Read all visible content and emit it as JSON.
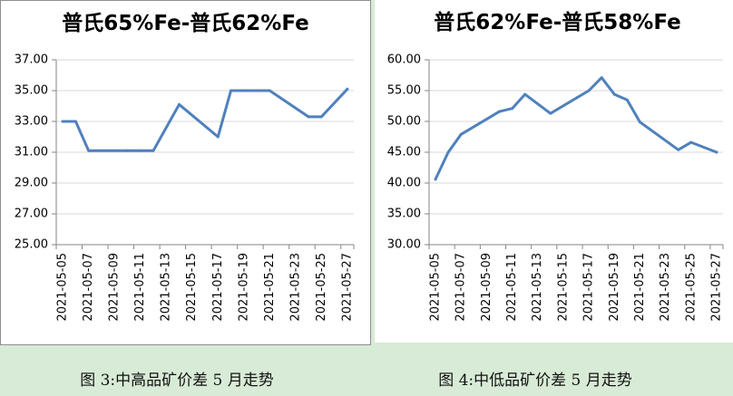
{
  "colors": {
    "background": "#d8ebd6",
    "panel": "#ffffff",
    "line": "#4f81bd"
  },
  "figures": [
    {
      "caption": "图 3:中高品矿价差 5 月走势"
    },
    {
      "caption": "图 4:中低品矿价差 5 月走势"
    }
  ],
  "chart_data": [
    {
      "type": "line",
      "title": "普氏65%Fe-普氏62%Fe",
      "xlabel": "",
      "ylabel": "",
      "xlim": [
        "2021-05-05",
        "2021-05-27"
      ],
      "x_tick_labels": [
        "2021-05-05",
        "2021-05-07",
        "2021-05-09",
        "2021-05-11",
        "2021-05-13",
        "2021-05-15",
        "2021-05-17",
        "2021-05-19",
        "2021-05-21",
        "2021-05-23",
        "2021-05-25",
        "2021-05-27"
      ],
      "ylim": [
        25,
        37
      ],
      "y_tick_labels": [
        "25.00",
        "27.00",
        "29.00",
        "31.00",
        "33.00",
        "35.00",
        "37.00"
      ],
      "grid": true,
      "line_color": "#4f81bd",
      "series": [
        {
          "x": [
            "2021-05-05",
            "2021-05-06",
            "2021-05-07",
            "2021-05-10",
            "2021-05-11",
            "2021-05-12",
            "2021-05-14",
            "2021-05-17",
            "2021-05-18",
            "2021-05-19",
            "2021-05-20",
            "2021-05-21",
            "2021-05-24",
            "2021-05-25",
            "2021-05-27"
          ],
          "y": [
            33.0,
            33.0,
            31.1,
            31.1,
            31.1,
            31.1,
            34.1,
            32.0,
            35.0,
            35.0,
            35.0,
            35.0,
            33.3,
            33.3,
            35.1
          ]
        }
      ]
    },
    {
      "type": "line",
      "title": "普氏62%Fe-普氏58%Fe",
      "xlabel": "",
      "ylabel": "",
      "xlim": [
        "2021-05-05",
        "2021-05-27"
      ],
      "x_tick_labels": [
        "2021-05-05",
        "2021-05-07",
        "2021-05-09",
        "2021-05-11",
        "2021-05-13",
        "2021-05-15",
        "2021-05-17",
        "2021-05-19",
        "2021-05-21",
        "2021-05-23",
        "2021-05-25",
        "2021-05-27"
      ],
      "ylim": [
        30,
        60
      ],
      "y_tick_labels": [
        "30.00",
        "35.00",
        "40.00",
        "45.00",
        "50.00",
        "55.00",
        "60.00"
      ],
      "grid": true,
      "line_color": "#4f81bd",
      "series": [
        {
          "x": [
            "2021-05-05",
            "2021-05-06",
            "2021-05-07",
            "2021-05-10",
            "2021-05-11",
            "2021-05-12",
            "2021-05-14",
            "2021-05-17",
            "2021-05-18",
            "2021-05-19",
            "2021-05-20",
            "2021-05-21",
            "2021-05-24",
            "2021-05-25",
            "2021-05-27"
          ],
          "y": [
            40.6,
            45.0,
            47.9,
            51.6,
            52.1,
            54.4,
            51.3,
            55.0,
            57.1,
            54.4,
            53.5,
            49.9,
            45.4,
            46.6,
            45.0
          ]
        }
      ]
    }
  ]
}
